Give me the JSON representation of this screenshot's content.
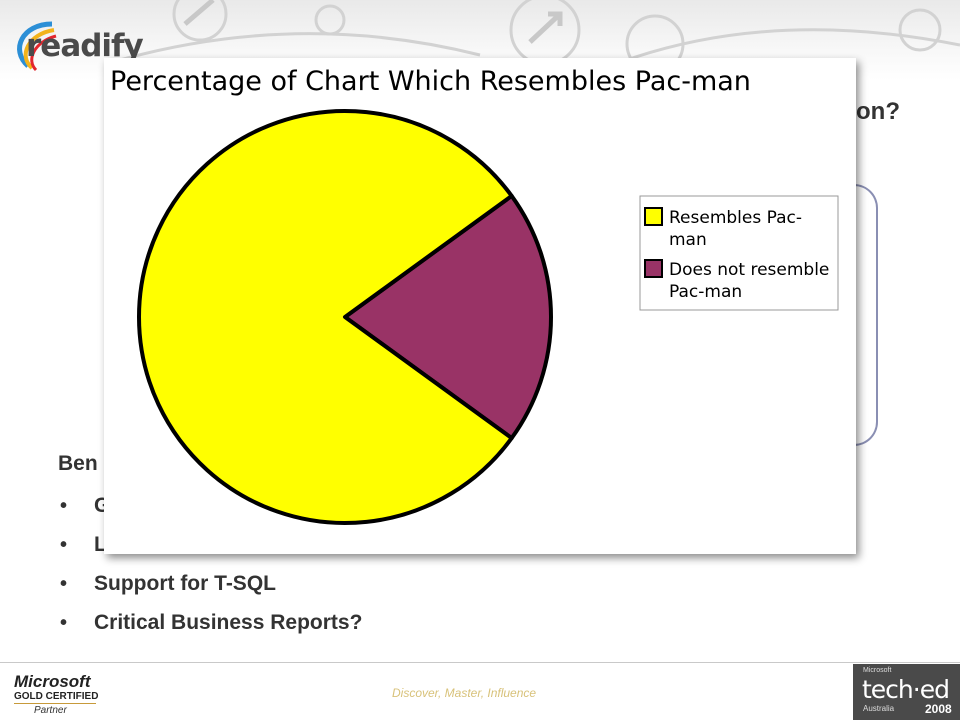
{
  "header": {
    "logo_text": "readify"
  },
  "slide": {
    "title_visible_fragment": "on?",
    "benefits_heading_visible": "Ben",
    "bullets": [
      "G",
      "L",
      "Support for T-SQL",
      "Critical Business Reports?"
    ]
  },
  "chart_data": {
    "type": "pie",
    "title": "Percentage of Chart Which Resembles Pac-man",
    "categories": [
      "Resembles Pac-man",
      "Does not resemble Pac-man"
    ],
    "legend_lines": [
      [
        "Resembles Pac-",
        "man"
      ],
      [
        "Does not resemble",
        "Pac-man"
      ]
    ],
    "values": [
      80,
      20
    ],
    "colors": [
      "#ffff00",
      "#993366"
    ],
    "legend_position": "right"
  },
  "footer": {
    "ms_word": "Microsoft",
    "ms_gold": "GOLD CERTIFIED",
    "ms_partner": "Partner",
    "tagline": "Discover, Master, Influence",
    "teched_small": "Microsoft",
    "teched_big": "tech·ed",
    "teched_sub": "Australia",
    "teched_year": "2008"
  }
}
